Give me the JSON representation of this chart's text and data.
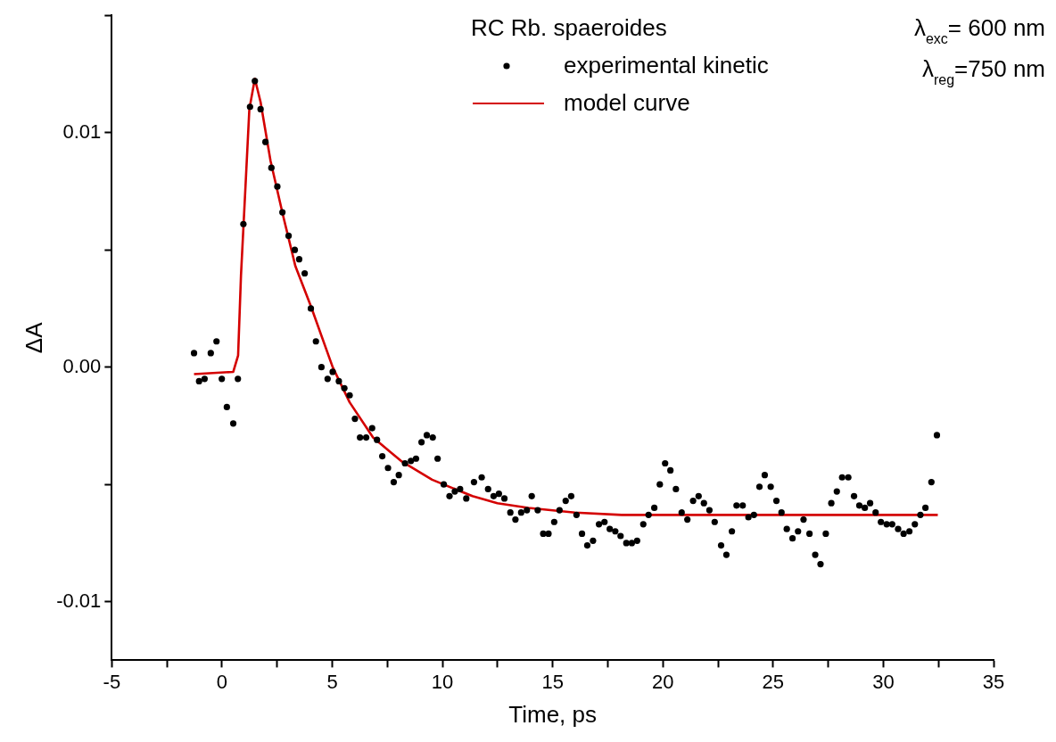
{
  "chart_data": {
    "type": "scatter",
    "xlabel": "Time, ps",
    "ylabel": "ΔA",
    "legend_title": "RC Rb. spaeroides",
    "legend": "top right",
    "annotations": [
      "λ$_{exc}$= 600 nm",
      "λ$_{reg}$=750 nm"
    ],
    "xlim": [
      -5,
      35
    ],
    "xticks": [
      -5,
      {
        "value": -2.5,
        "label": null
      },
      0,
      {
        "value": 2.5,
        "label": null
      },
      5,
      {
        "value": 7.5,
        "label": null
      },
      10,
      {
        "value": 12.5,
        "label": null
      },
      15,
      {
        "value": 17.5,
        "label": null
      },
      20,
      {
        "value": 22.5,
        "label": null
      },
      25,
      {
        "value": 27.5,
        "label": null
      },
      30,
      {
        "value": 32.5,
        "label": null
      },
      35
    ],
    "ylim": [
      -0.0125,
      0.015
    ],
    "yticks": [
      {
        "value": -0.01,
        "label": "-0.01"
      },
      {
        "value": -0.005,
        "label": null
      },
      {
        "value": 0,
        "label": "0.00"
      },
      {
        "value": 0.005,
        "label": null
      },
      {
        "value": 0.01,
        "label": "0.01"
      },
      {
        "value": 0.015,
        "label": null
      }
    ],
    "grid": false,
    "series": [
      {
        "name": "experimental kinetic",
        "type": "scatter",
        "marker": "circle",
        "color": "#000000",
        "x": [
          -1.27,
          -1.04,
          -0.79,
          -0.51,
          -0.25,
          -0.01,
          0.22,
          0.51,
          0.72,
          0.97,
          1.27,
          1.49,
          1.75,
          1.97,
          2.24,
          2.51,
          2.74,
          3.02,
          3.3,
          3.5,
          3.75,
          4.03,
          4.26,
          4.51,
          4.79,
          5.02,
          5.3,
          5.55,
          5.79,
          6.03,
          6.26,
          6.54,
          6.81,
          7.03,
          7.27,
          7.53,
          7.79,
          8.02,
          8.3,
          8.57,
          8.8,
          9.05,
          9.29,
          9.56,
          9.78,
          10.06,
          10.32,
          10.56,
          10.8,
          11.08,
          11.43,
          11.78,
          12.07,
          12.32,
          12.56,
          12.81,
          13.08,
          13.31,
          13.57,
          13.83,
          14.05,
          14.32,
          14.57,
          14.81,
          15.07,
          15.31,
          15.59,
          15.84,
          16.08,
          16.33,
          16.57,
          16.83,
          17.1,
          17.35,
          17.59,
          17.84,
          18.08,
          18.34,
          18.59,
          18.83,
          19.11,
          19.35,
          19.61,
          19.86,
          20.1,
          20.34,
          20.59,
          20.85,
          21.11,
          21.37,
          21.62,
          21.86,
          22.11,
          22.35,
          22.64,
          22.88,
          23.13,
          23.34,
          23.62,
          23.88,
          24.13,
          24.38,
          24.62,
          24.89,
          25.15,
          25.38,
          25.62,
          25.88,
          26.13,
          26.38,
          26.65,
          26.91,
          27.15,
          27.39,
          27.64,
          27.89,
          28.13,
          28.41,
          28.67,
          28.91,
          29.16,
          29.4,
          29.65,
          29.89,
          30.15,
          30.4,
          30.67,
          30.92,
          31.18,
          31.43,
          31.68,
          31.91,
          32.18,
          32.43
        ],
        "values": [
          0.0006,
          -0.0006,
          -0.0005,
          0.0006,
          0.0011,
          -0.0005,
          -0.0017,
          -0.0024,
          -0.0005,
          0.0061,
          0.0111,
          0.0122,
          0.011,
          0.0096,
          0.0085,
          0.0077,
          0.0066,
          0.0056,
          0.005,
          0.0046,
          0.004,
          0.0025,
          0.0011,
          0.0,
          -0.0005,
          -0.0002,
          -0.0006,
          -0.0009,
          -0.0012,
          -0.0022,
          -0.003,
          -0.003,
          -0.0026,
          -0.0031,
          -0.0038,
          -0.0043,
          -0.0049,
          -0.0046,
          -0.0041,
          -0.004,
          -0.0039,
          -0.0032,
          -0.0029,
          -0.003,
          -0.0039,
          -0.005,
          -0.0055,
          -0.0053,
          -0.0052,
          -0.0056,
          -0.0049,
          -0.0047,
          -0.0052,
          -0.0055,
          -0.0054,
          -0.0056,
          -0.0062,
          -0.0065,
          -0.0062,
          -0.0061,
          -0.0055,
          -0.0061,
          -0.0071,
          -0.0071,
          -0.0066,
          -0.0061,
          -0.0057,
          -0.0055,
          -0.0063,
          -0.0071,
          -0.0076,
          -0.0074,
          -0.0067,
          -0.0066,
          -0.0069,
          -0.007,
          -0.0072,
          -0.0075,
          -0.0075,
          -0.0074,
          -0.0067,
          -0.0063,
          -0.006,
          -0.005,
          -0.0041,
          -0.0044,
          -0.0052,
          -0.0062,
          -0.0065,
          -0.0057,
          -0.0055,
          -0.0058,
          -0.0061,
          -0.0066,
          -0.0076,
          -0.008,
          -0.007,
          -0.0059,
          -0.0059,
          -0.0064,
          -0.0063,
          -0.0051,
          -0.0046,
          -0.0051,
          -0.0057,
          -0.0062,
          -0.0069,
          -0.0073,
          -0.007,
          -0.0065,
          -0.0071,
          -0.008,
          -0.0084,
          -0.0071,
          -0.0058,
          -0.0053,
          -0.0047,
          -0.0047,
          -0.0055,
          -0.0059,
          -0.006,
          -0.0058,
          -0.0062,
          -0.0066,
          -0.0067,
          -0.0067,
          -0.0069,
          -0.0071,
          -0.007,
          -0.0067,
          -0.0063,
          -0.006,
          -0.0049,
          -0.0029
        ]
      },
      {
        "name": "model curve",
        "type": "line",
        "line_style": "solid",
        "color": "#d40000",
        "x": [
          -1.27,
          0.51,
          0.73,
          0.86,
          1.07,
          1.24,
          1.49,
          1.75,
          2.2,
          2.76,
          3.33,
          4.03,
          5.02,
          5.79,
          6.85,
          8.12,
          9.53,
          11.36,
          12.49,
          13.9,
          16.01,
          18.13,
          20.93,
          32.47
        ],
        "values": [
          -0.0003,
          -0.0002,
          0.0005,
          0.0039,
          0.0078,
          0.011,
          0.0123,
          0.0113,
          0.0088,
          0.0065,
          0.0043,
          0.0026,
          0.0,
          -0.0015,
          -0.003,
          -0.004,
          -0.0048,
          -0.0055,
          -0.0058,
          -0.006,
          -0.0062,
          -0.0063,
          -0.0063,
          -0.0063
        ]
      }
    ]
  }
}
